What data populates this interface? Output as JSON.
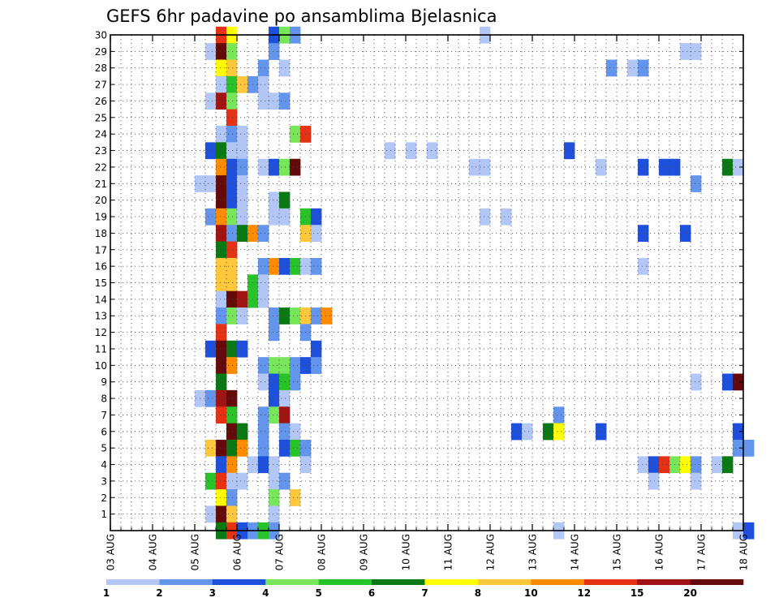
{
  "chart_data": {
    "type": "heatmap",
    "title": "GEFS 6hr padavine po ansamblima Bjelasnica",
    "xlabel": "",
    "ylabel": "",
    "y_ticks": [
      "1",
      "2",
      "3",
      "4",
      "5",
      "6",
      "7",
      "8",
      "9",
      "10",
      "11",
      "12",
      "13",
      "14",
      "15",
      "16",
      "17",
      "18",
      "19",
      "20",
      "21",
      "22",
      "23",
      "24",
      "25",
      "26",
      "27",
      "28",
      "29",
      "30"
    ],
    "x_ticks": [
      "03 AUG",
      "04 AUG",
      "05 AUG",
      "06 AUG",
      "07 AUG",
      "08 AUG",
      "09 AUG",
      "10 AUG",
      "11 AUG",
      "12 AUG",
      "13 AUG",
      "14 AUG",
      "15 AUG",
      "16 AUG",
      "17 AUG",
      "18 AUG"
    ],
    "time_step_hours": 6,
    "grid": "dotted",
    "legend": {
      "placement": "bottom",
      "colors": [
        "#b3c7f7",
        "#6495ed",
        "#1e50dc",
        "#78e65a",
        "#28c328",
        "#0a7814",
        "#ffff00",
        "#ffc83c",
        "#ff8c00",
        "#e63214",
        "#a01414",
        "#640a0a"
      ],
      "labels": [
        "1",
        "2",
        "3",
        "4",
        "5",
        "6",
        "7",
        "8",
        "10",
        "12",
        "15",
        "20"
      ]
    },
    "cells": [
      [
        "05 AUG 12Z",
        "30",
        14
      ],
      [
        "05 AUG 18Z",
        "30",
        7
      ],
      [
        "06 AUG 18Z",
        "30",
        3
      ],
      [
        "07 AUG 00Z",
        "30",
        4
      ],
      [
        "07 AUG 06Z",
        "30",
        2
      ],
      [
        "11 AUG 18Z",
        "30",
        1
      ],
      [
        "05 AUG 06Z",
        "29",
        1
      ],
      [
        "05 AUG 12Z",
        "29",
        20
      ],
      [
        "05 AUG 18Z",
        "29",
        4
      ],
      [
        "06 AUG 18Z",
        "29",
        2
      ],
      [
        "16 AUG 12Z",
        "29",
        1
      ],
      [
        "16 AUG 18Z",
        "29",
        1
      ],
      [
        "05 AUG 12Z",
        "28",
        7
      ],
      [
        "05 AUG 18Z",
        "28",
        8
      ],
      [
        "06 AUG 12Z",
        "28",
        2
      ],
      [
        "07 AUG 00Z",
        "28",
        1
      ],
      [
        "14 AUG 18Z",
        "28",
        2
      ],
      [
        "15 AUG 06Z",
        "28",
        1
      ],
      [
        "15 AUG 12Z",
        "28",
        2
      ],
      [
        "05 AUG 12Z",
        "27",
        1
      ],
      [
        "05 AUG 18Z",
        "27",
        5
      ],
      [
        "06 AUG 00Z",
        "27",
        8
      ],
      [
        "06 AUG 06Z",
        "27",
        2
      ],
      [
        "06 AUG 12Z",
        "27",
        1
      ],
      [
        "05 AUG 06Z",
        "26",
        1
      ],
      [
        "05 AUG 12Z",
        "26",
        15
      ],
      [
        "05 AUG 18Z",
        "26",
        4
      ],
      [
        "06 AUG 12Z",
        "26",
        1
      ],
      [
        "06 AUG 18Z",
        "26",
        1
      ],
      [
        "07 AUG 00Z",
        "26",
        2
      ],
      [
        "05 AUG 18Z",
        "25",
        12
      ],
      [
        "05 AUG 12Z",
        "24",
        1
      ],
      [
        "05 AUG 18Z",
        "24",
        2
      ],
      [
        "06 AUG 00Z",
        "24",
        1
      ],
      [
        "07 AUG 06Z",
        "24",
        4
      ],
      [
        "07 AUG 12Z",
        "24",
        12
      ],
      [
        "05 AUG 06Z",
        "23",
        3
      ],
      [
        "05 AUG 12Z",
        "23",
        6
      ],
      [
        "05 AUG 18Z",
        "23",
        1
      ],
      [
        "06 AUG 00Z",
        "23",
        1
      ],
      [
        "09 AUG 12Z",
        "23",
        1
      ],
      [
        "10 AUG 00Z",
        "23",
        1
      ],
      [
        "10 AUG 12Z",
        "23",
        1
      ],
      [
        "13 AUG 18Z",
        "23",
        3
      ],
      [
        "05 AUG 12Z",
        "22",
        10
      ],
      [
        "05 AUG 18Z",
        "22",
        3
      ],
      [
        "06 AUG 00Z",
        "22",
        2
      ],
      [
        "06 AUG 12Z",
        "22",
        1
      ],
      [
        "06 AUG 18Z",
        "22",
        3
      ],
      [
        "07 AUG 00Z",
        "22",
        4
      ],
      [
        "07 AUG 06Z",
        "22",
        20
      ],
      [
        "11 AUG 12Z",
        "22",
        1
      ],
      [
        "11 AUG 18Z",
        "22",
        1
      ],
      [
        "14 AUG 12Z",
        "22",
        1
      ],
      [
        "15 AUG 12Z",
        "22",
        3
      ],
      [
        "16 AUG 00Z",
        "22",
        3
      ],
      [
        "16 AUG 06Z",
        "22",
        3
      ],
      [
        "17 AUG 12Z",
        "22",
        6
      ],
      [
        "17 AUG 18Z",
        "22",
        1
      ],
      [
        "05 AUG 00Z",
        "21",
        1
      ],
      [
        "05 AUG 06Z",
        "21",
        1
      ],
      [
        "05 AUG 12Z",
        "21",
        20
      ],
      [
        "05 AUG 18Z",
        "21",
        3
      ],
      [
        "06 AUG 00Z",
        "21",
        1
      ],
      [
        "16 AUG 18Z",
        "21",
        2
      ],
      [
        "05 AUG 12Z",
        "20",
        20
      ],
      [
        "05 AUG 18Z",
        "20",
        3
      ],
      [
        "06 AUG 00Z",
        "20",
        1
      ],
      [
        "06 AUG 18Z",
        "20",
        1
      ],
      [
        "07 AUG 00Z",
        "20",
        6
      ],
      [
        "05 AUG 06Z",
        "19",
        2
      ],
      [
        "05 AUG 12Z",
        "19",
        10
      ],
      [
        "05 AUG 18Z",
        "19",
        4
      ],
      [
        "06 AUG 00Z",
        "19",
        1
      ],
      [
        "06 AUG 18Z",
        "19",
        1
      ],
      [
        "07 AUG 00Z",
        "19",
        1
      ],
      [
        "07 AUG 12Z",
        "19",
        5
      ],
      [
        "07 AUG 18Z",
        "19",
        3
      ],
      [
        "11 AUG 18Z",
        "19",
        1
      ],
      [
        "12 AUG 06Z",
        "19",
        1
      ],
      [
        "05 AUG 12Z",
        "18",
        15
      ],
      [
        "05 AUG 18Z",
        "18",
        2
      ],
      [
        "06 AUG 00Z",
        "18",
        6
      ],
      [
        "06 AUG 06Z",
        "18",
        10
      ],
      [
        "06 AUG 12Z",
        "18",
        2
      ],
      [
        "07 AUG 12Z",
        "18",
        8
      ],
      [
        "07 AUG 18Z",
        "18",
        1
      ],
      [
        "15 AUG 12Z",
        "18",
        3
      ],
      [
        "16 AUG 12Z",
        "18",
        3
      ],
      [
        "05 AUG 12Z",
        "17",
        6
      ],
      [
        "05 AUG 18Z",
        "17",
        12
      ],
      [
        "05 AUG 12Z",
        "16",
        8
      ],
      [
        "05 AUG 18Z",
        "16",
        8
      ],
      [
        "06 AUG 12Z",
        "16",
        2
      ],
      [
        "06 AUG 18Z",
        "16",
        10
      ],
      [
        "07 AUG 00Z",
        "16",
        3
      ],
      [
        "07 AUG 06Z",
        "16",
        5
      ],
      [
        "07 AUG 12Z",
        "16",
        1
      ],
      [
        "07 AUG 18Z",
        "16",
        2
      ],
      [
        "15 AUG 12Z",
        "16",
        1
      ],
      [
        "05 AUG 12Z",
        "15",
        8
      ],
      [
        "05 AUG 18Z",
        "15",
        8
      ],
      [
        "06 AUG 06Z",
        "15",
        5
      ],
      [
        "06 AUG 12Z",
        "15",
        1
      ],
      [
        "05 AUG 12Z",
        "14",
        1
      ],
      [
        "05 AUG 18Z",
        "14",
        20
      ],
      [
        "06 AUG 00Z",
        "14",
        15
      ],
      [
        "06 AUG 06Z",
        "14",
        5
      ],
      [
        "06 AUG 12Z",
        "14",
        1
      ],
      [
        "05 AUG 12Z",
        "13",
        2
      ],
      [
        "05 AUG 18Z",
        "13",
        4
      ],
      [
        "06 AUG 00Z",
        "13",
        1
      ],
      [
        "06 AUG 18Z",
        "13",
        2
      ],
      [
        "07 AUG 00Z",
        "13",
        6
      ],
      [
        "07 AUG 06Z",
        "13",
        4
      ],
      [
        "07 AUG 12Z",
        "13",
        8
      ],
      [
        "07 AUG 18Z",
        "13",
        2
      ],
      [
        "08 AUG 00Z",
        "13",
        10
      ],
      [
        "05 AUG 12Z",
        "12",
        12
      ],
      [
        "06 AUG 18Z",
        "12",
        2
      ],
      [
        "07 AUG 12Z",
        "12",
        2
      ],
      [
        "05 AUG 06Z",
        "11",
        3
      ],
      [
        "05 AUG 12Z",
        "11",
        20
      ],
      [
        "05 AUG 18Z",
        "11",
        6
      ],
      [
        "06 AUG 00Z",
        "11",
        3
      ],
      [
        "07 AUG 18Z",
        "11",
        3
      ],
      [
        "05 AUG 12Z",
        "10",
        20
      ],
      [
        "05 AUG 18Z",
        "10",
        10
      ],
      [
        "06 AUG 12Z",
        "10",
        2
      ],
      [
        "06 AUG 18Z",
        "10",
        4
      ],
      [
        "07 AUG 00Z",
        "10",
        4
      ],
      [
        "07 AUG 06Z",
        "10",
        2
      ],
      [
        "07 AUG 12Z",
        "10",
        3
      ],
      [
        "07 AUG 18Z",
        "10",
        2
      ],
      [
        "05 AUG 12Z",
        "9",
        6
      ],
      [
        "06 AUG 12Z",
        "9",
        1
      ],
      [
        "06 AUG 18Z",
        "9",
        3
      ],
      [
        "07 AUG 00Z",
        "9",
        5
      ],
      [
        "07 AUG 06Z",
        "9",
        2
      ],
      [
        "16 AUG 18Z",
        "9",
        1
      ],
      [
        "17 AUG 12Z",
        "9",
        3
      ],
      [
        "17 AUG 18Z",
        "9",
        20
      ],
      [
        "05 AUG 00Z",
        "8",
        1
      ],
      [
        "05 AUG 06Z",
        "8",
        2
      ],
      [
        "05 AUG 12Z",
        "8",
        15
      ],
      [
        "05 AUG 18Z",
        "8",
        20
      ],
      [
        "06 AUG 18Z",
        "8",
        3
      ],
      [
        "07 AUG 00Z",
        "8",
        1
      ],
      [
        "05 AUG 12Z",
        "7",
        12
      ],
      [
        "05 AUG 18Z",
        "7",
        5
      ],
      [
        "06 AUG 12Z",
        "7",
        2
      ],
      [
        "06 AUG 18Z",
        "7",
        4
      ],
      [
        "07 AUG 00Z",
        "7",
        15
      ],
      [
        "13 AUG 12Z",
        "7",
        2
      ],
      [
        "05 AUG 18Z",
        "6",
        20
      ],
      [
        "06 AUG 00Z",
        "6",
        6
      ],
      [
        "06 AUG 12Z",
        "6",
        2
      ],
      [
        "07 AUG 00Z",
        "6",
        2
      ],
      [
        "07 AUG 06Z",
        "6",
        1
      ],
      [
        "12 AUG 12Z",
        "6",
        3
      ],
      [
        "12 AUG 18Z",
        "6",
        1
      ],
      [
        "13 AUG 06Z",
        "6",
        6
      ],
      [
        "13 AUG 12Z",
        "6",
        7
      ],
      [
        "14 AUG 12Z",
        "6",
        3
      ],
      [
        "17 AUG 18Z",
        "6",
        3
      ],
      [
        "05 AUG 06Z",
        "5",
        8
      ],
      [
        "05 AUG 12Z",
        "5",
        20
      ],
      [
        "05 AUG 18Z",
        "5",
        6
      ],
      [
        "06 AUG 00Z",
        "5",
        10
      ],
      [
        "06 AUG 12Z",
        "5",
        2
      ],
      [
        "07 AUG 00Z",
        "5",
        3
      ],
      [
        "07 AUG 06Z",
        "5",
        5
      ],
      [
        "07 AUG 12Z",
        "5",
        2
      ],
      [
        "17 AUG 18Z",
        "5",
        2
      ],
      [
        "18 AUG 00Z",
        "5",
        2
      ],
      [
        "05 AUG 12Z",
        "4",
        3
      ],
      [
        "05 AUG 18Z",
        "4",
        10
      ],
      [
        "06 AUG 06Z",
        "4",
        1
      ],
      [
        "06 AUG 12Z",
        "4",
        3
      ],
      [
        "06 AUG 18Z",
        "4",
        1
      ],
      [
        "07 AUG 12Z",
        "4",
        1
      ],
      [
        "15 AUG 12Z",
        "4",
        1
      ],
      [
        "15 AUG 18Z",
        "4",
        3
      ],
      [
        "16 AUG 00Z",
        "4",
        12
      ],
      [
        "16 AUG 06Z",
        "4",
        4
      ],
      [
        "16 AUG 12Z",
        "4",
        7
      ],
      [
        "16 AUG 18Z",
        "4",
        2
      ],
      [
        "17 AUG 06Z",
        "4",
        1
      ],
      [
        "17 AUG 12Z",
        "4",
        6
      ],
      [
        "05 AUG 06Z",
        "3",
        5
      ],
      [
        "05 AUG 12Z",
        "3",
        12
      ],
      [
        "05 AUG 18Z",
        "3",
        1
      ],
      [
        "06 AUG 00Z",
        "3",
        1
      ],
      [
        "06 AUG 18Z",
        "3",
        1
      ],
      [
        "07 AUG 00Z",
        "3",
        2
      ],
      [
        "15 AUG 18Z",
        "3",
        1
      ],
      [
        "16 AUG 18Z",
        "3",
        1
      ],
      [
        "05 AUG 12Z",
        "2",
        7
      ],
      [
        "05 AUG 18Z",
        "2",
        2
      ],
      [
        "06 AUG 18Z",
        "2",
        4
      ],
      [
        "07 AUG 06Z",
        "2",
        8
      ],
      [
        "05 AUG 06Z",
        "1",
        1
      ],
      [
        "05 AUG 12Z",
        "1",
        20
      ],
      [
        "05 AUG 18Z",
        "1",
        8
      ],
      [
        "06 AUG 18Z",
        "1",
        1
      ],
      [
        "05 AUG 12Z",
        "0",
        6
      ],
      [
        "05 AUG 18Z",
        "0",
        12
      ],
      [
        "06 AUG 00Z",
        "0",
        3
      ],
      [
        "06 AUG 06Z",
        "0",
        2
      ],
      [
        "06 AUG 12Z",
        "0",
        5
      ],
      [
        "06 AUG 18Z",
        "0",
        2
      ],
      [
        "13 AUG 12Z",
        "0",
        1
      ],
      [
        "17 AUG 18Z",
        "0",
        1
      ],
      [
        "18 AUG 00Z",
        "0",
        3
      ]
    ]
  }
}
